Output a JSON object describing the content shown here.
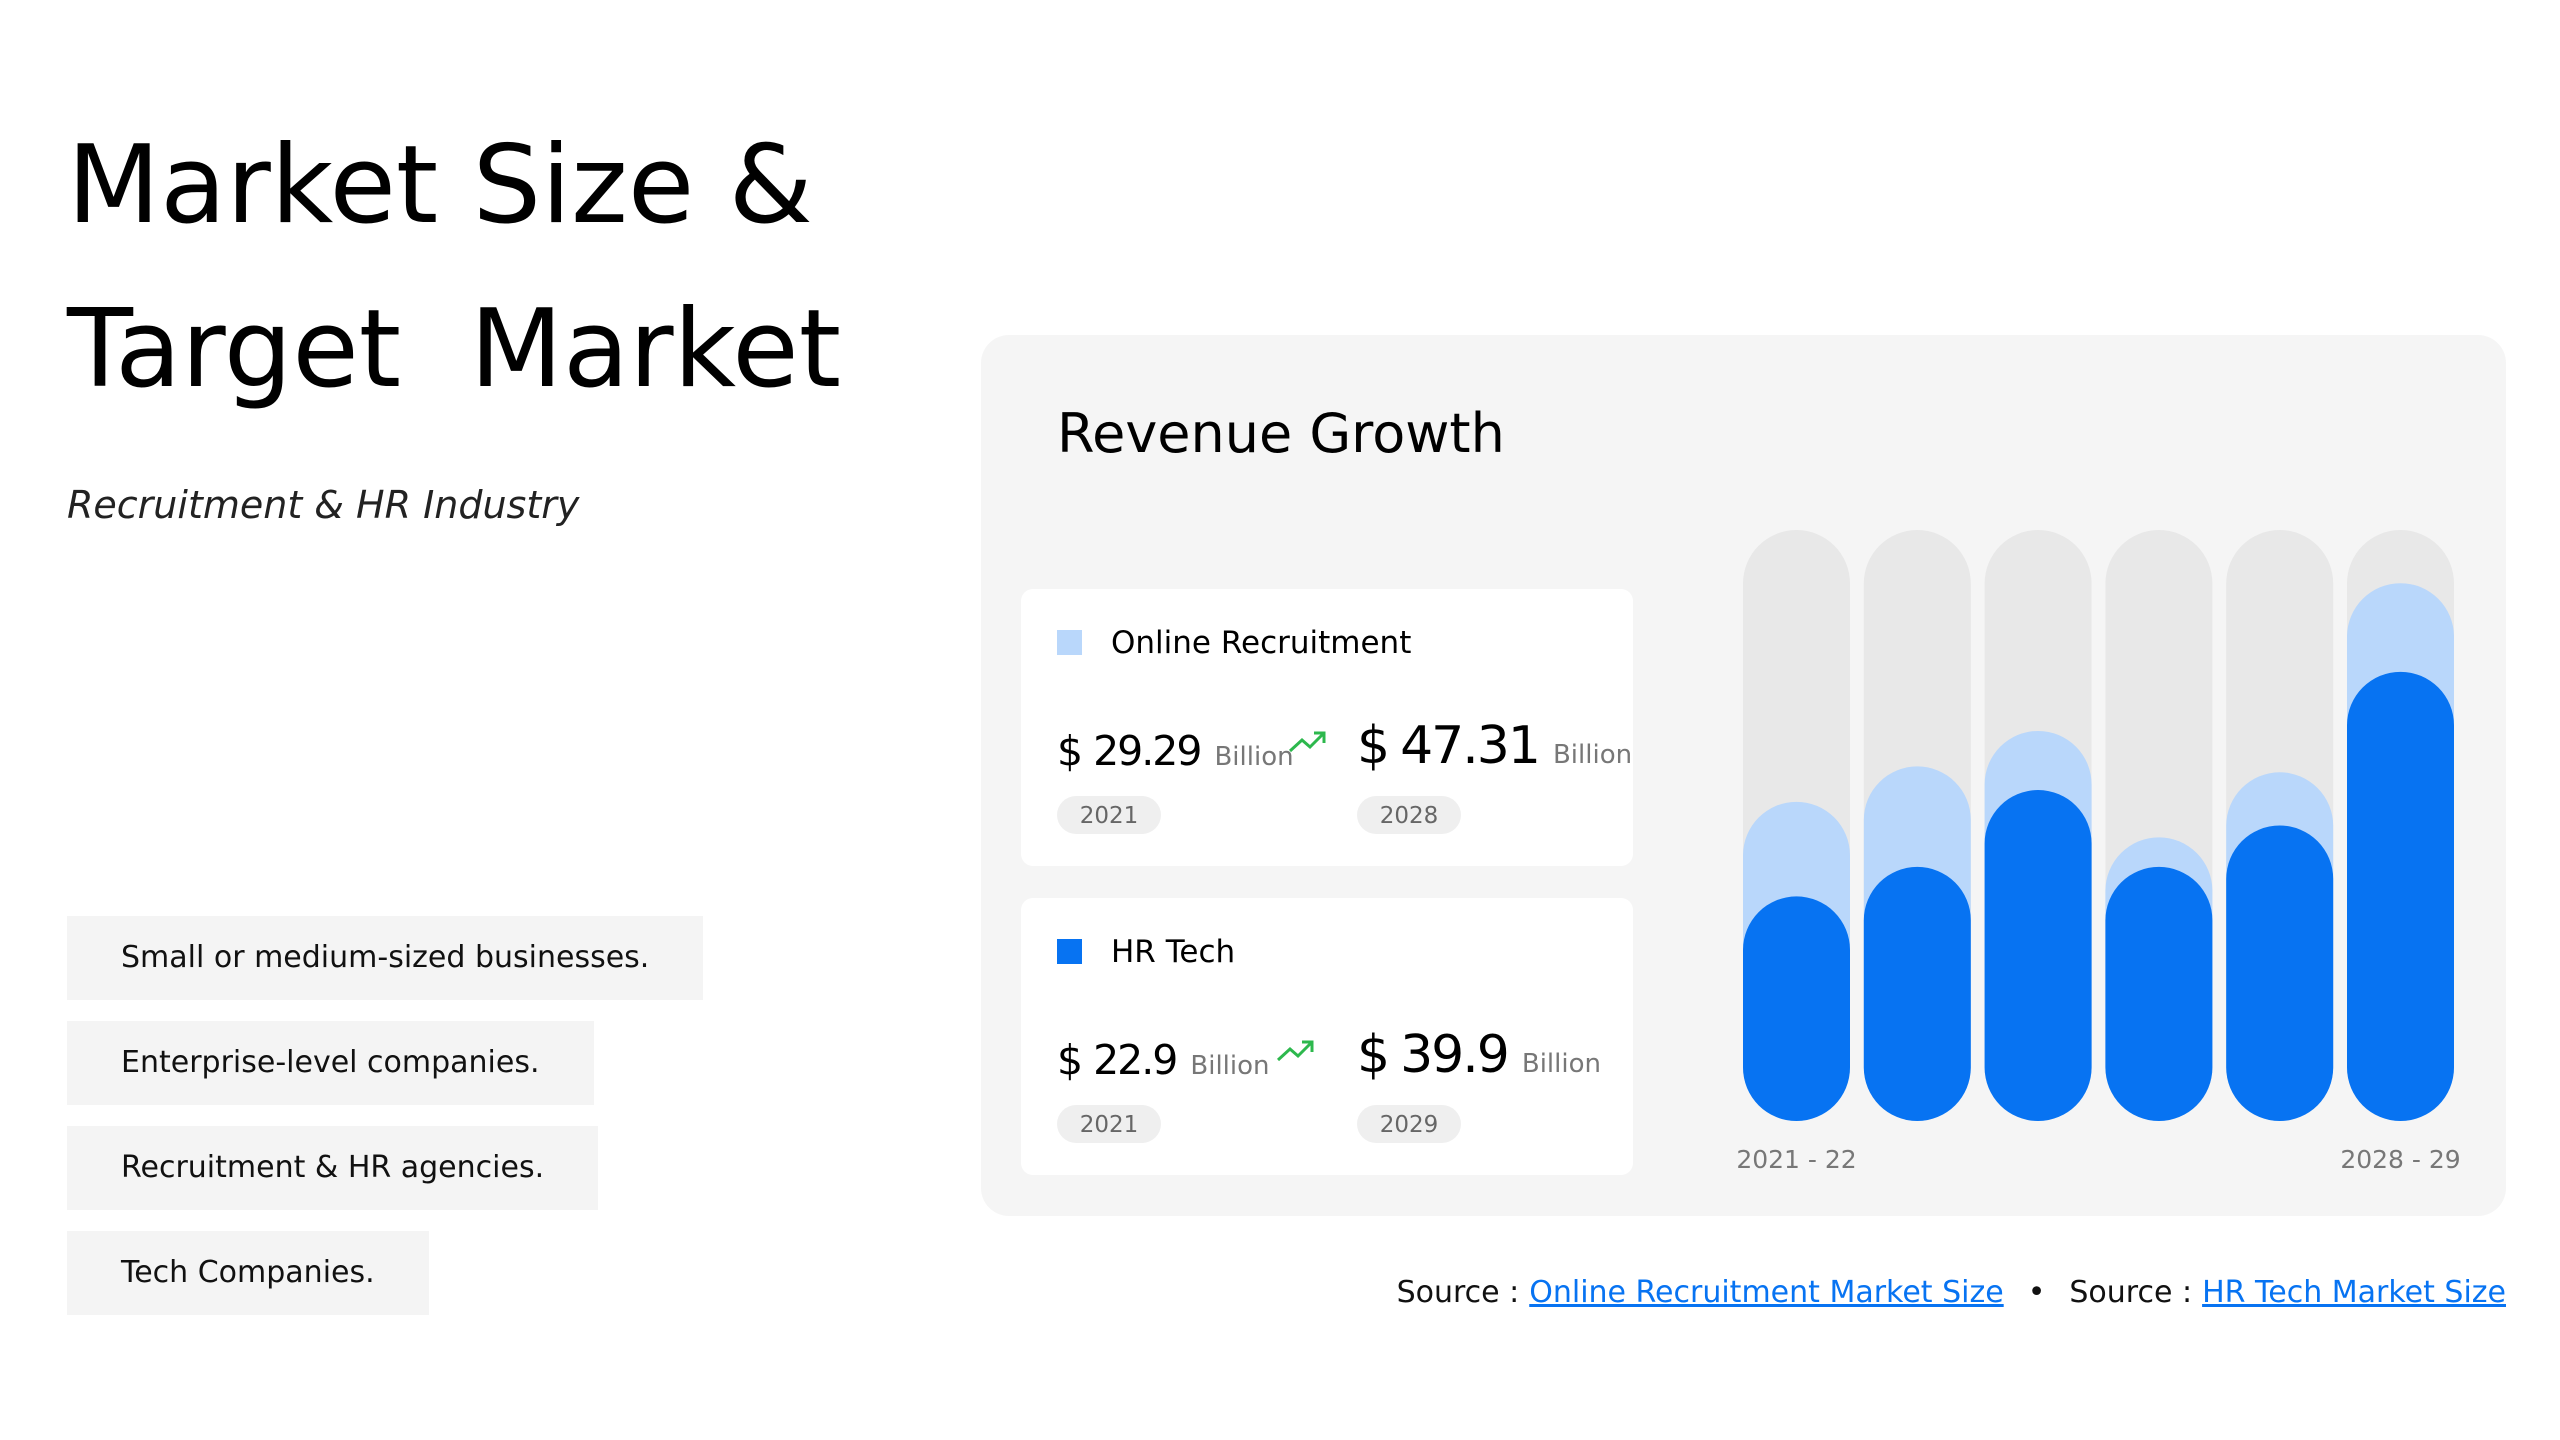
{
  "header": {
    "title_lines": [
      "Market Size &",
      "Target  Market"
    ],
    "subtitle": "Recruitment & HR Industry"
  },
  "segments": [
    "Small or medium-sized businesses.",
    "Enterprise-level companies.",
    "Recruitment & HR agencies.",
    "Tech Companies."
  ],
  "panel_title": "Revenue Growth",
  "stats": [
    {
      "currency": "$",
      "unit": "Billion",
      "from_value": 29.29,
      "from_year": "2021",
      "to_value": 47.31,
      "to_year": "2028"
    },
    {
      "currency": "$",
      "unit": "Billion",
      "from_value": 22.9,
      "from_year": "2021",
      "to_value": 39.9,
      "to_year": "2029"
    }
  ],
  "chart_data": {
    "type": "bar",
    "categories": [
      "2021 - 22",
      null,
      null,
      null,
      null,
      "2028 - 29"
    ],
    "ylim": [
      0,
      100
    ],
    "track_color": "#e8e8e8",
    "series": [
      {
        "name": "Online Recruitment",
        "color": "#b9d7fb",
        "values": [
          54,
          60,
          66,
          48,
          59,
          91
        ]
      },
      {
        "name": "HR Tech",
        "color": "#0773f2",
        "values": [
          38,
          43,
          56,
          43,
          50,
          76
        ]
      }
    ]
  },
  "sources": [
    {
      "label": "Source :",
      "link": "Online Recruitment Market Size"
    },
    {
      "label": "Source :",
      "link": "HR Tech Market Size"
    }
  ],
  "separator": "•"
}
